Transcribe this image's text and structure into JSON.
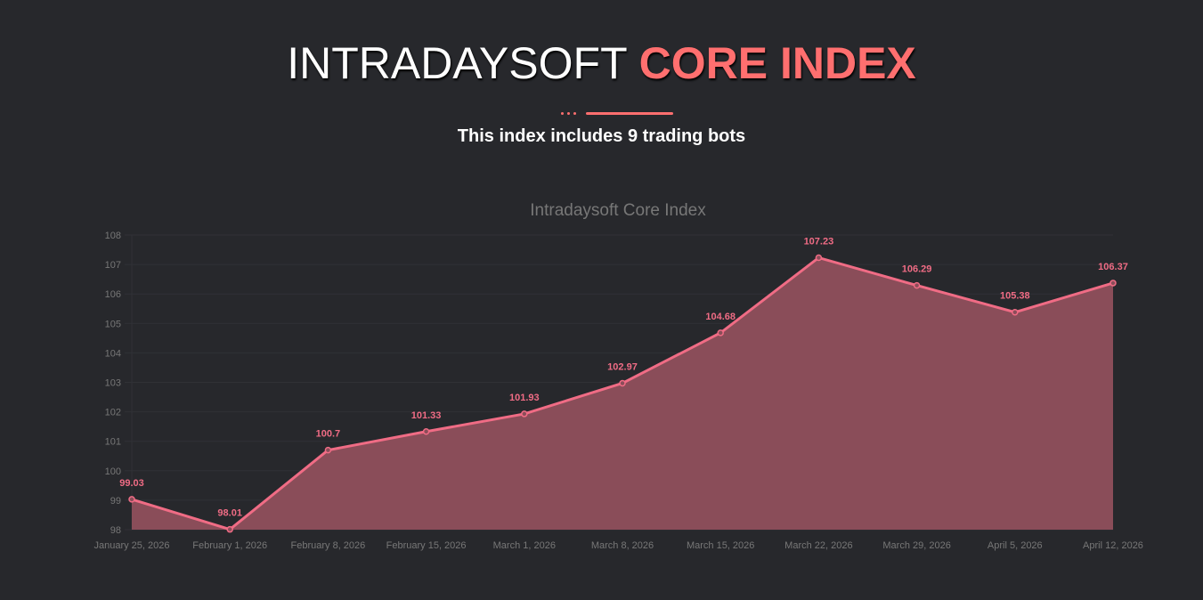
{
  "header": {
    "title_plain": "INTRADAYSOFT",
    "title_highlight": "CORE INDEX",
    "subtitle": "This index includes 9 trading bots"
  },
  "chart_data": {
    "type": "area",
    "title": "Intradaysoft Core Index",
    "categories": [
      "January 25, 2026",
      "February 1, 2026",
      "February 8, 2026",
      "February 15, 2026",
      "March 1, 2026",
      "March 8, 2026",
      "March 15, 2026",
      "March 22, 2026",
      "March 29, 2026",
      "April 5, 2026",
      "April 12, 2026"
    ],
    "values": [
      99.03,
      98.01,
      100.7,
      101.33,
      101.93,
      102.97,
      104.68,
      107.23,
      106.29,
      105.38,
      106.37
    ],
    "ylim": [
      98,
      108
    ],
    "yticks": [
      98,
      99,
      100,
      101,
      102,
      103,
      104,
      105,
      106,
      107,
      108
    ],
    "grid": true,
    "line_color": "#f06c85",
    "fill_color": "#8a4d59"
  }
}
